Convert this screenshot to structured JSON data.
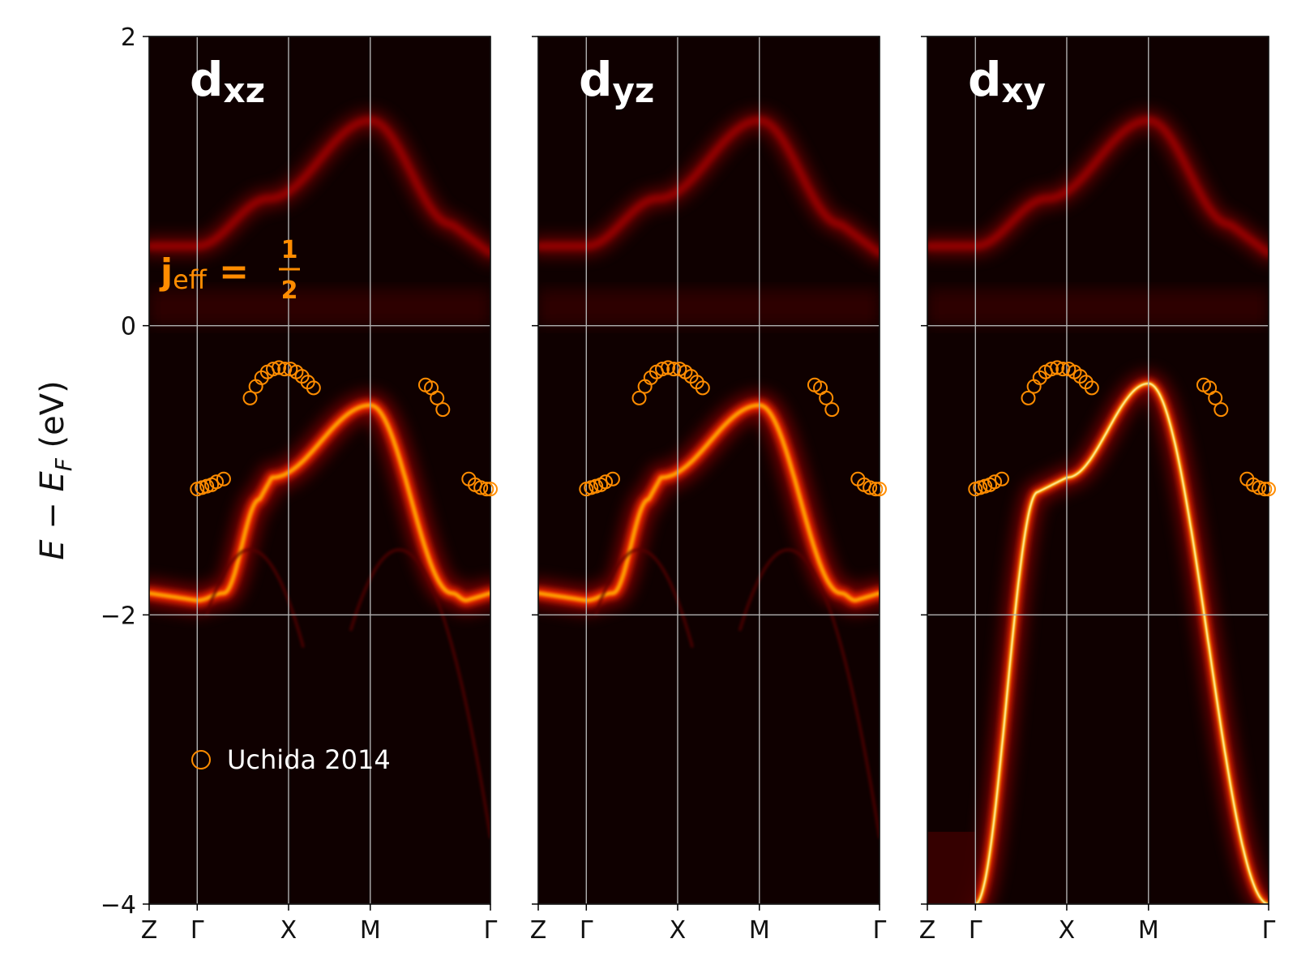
{
  "chart_data": {
    "type": "heatmap",
    "ylabel": {
      "main": "E − E",
      "sub": "F",
      "unit": " (eV)"
    },
    "ylim": [
      -4,
      2
    ],
    "yticks": [
      {
        "value": 2,
        "label": "2"
      },
      {
        "value": 0,
        "label": "0"
      },
      {
        "value": -2,
        "label": "−2"
      },
      {
        "value": -4,
        "label": "−4"
      }
    ],
    "kpath": {
      "range": [
        0,
        7.1
      ],
      "ticks": [
        {
          "pos": 0.0,
          "label": "Z"
        },
        {
          "pos": 1.0,
          "label": "Γ"
        },
        {
          "pos": 2.9,
          "label": "X"
        },
        {
          "pos": 4.6,
          "label": "M"
        },
        {
          "pos": 7.1,
          "label": "Γ"
        }
      ]
    },
    "grid": true,
    "colormap": "hot",
    "panels": [
      {
        "title_main": "d",
        "title_sub": "xz",
        "orbital": "xz"
      },
      {
        "title_main": "d",
        "title_sub": "yz",
        "orbital": "yz"
      },
      {
        "title_main": "d",
        "title_sub": "xy",
        "orbital": "xy"
      }
    ],
    "annotation": {
      "j": "j",
      "sub": "eff",
      "eq": " = ",
      "num": "1",
      "den": "2"
    },
    "series": [
      {
        "name": "Uchida 2014",
        "marker": "open-circle",
        "color": "#ff8c00",
        "points": [
          {
            "x": 1.0,
            "y": -1.13
          },
          {
            "x": 1.1,
            "y": -1.12
          },
          {
            "x": 1.2,
            "y": -1.11
          },
          {
            "x": 1.3,
            "y": -1.1
          },
          {
            "x": 1.4,
            "y": -1.08
          },
          {
            "x": 1.55,
            "y": -1.06
          },
          {
            "x": 2.1,
            "y": -0.5
          },
          {
            "x": 2.22,
            "y": -0.42
          },
          {
            "x": 2.34,
            "y": -0.36
          },
          {
            "x": 2.46,
            "y": -0.32
          },
          {
            "x": 2.58,
            "y": -0.3
          },
          {
            "x": 2.7,
            "y": -0.29
          },
          {
            "x": 2.82,
            "y": -0.3
          },
          {
            "x": 2.94,
            "y": -0.3
          },
          {
            "x": 3.06,
            "y": -0.32
          },
          {
            "x": 3.18,
            "y": -0.35
          },
          {
            "x": 3.3,
            "y": -0.39
          },
          {
            "x": 3.42,
            "y": -0.43
          },
          {
            "x": 5.75,
            "y": -0.41
          },
          {
            "x": 5.87,
            "y": -0.43
          },
          {
            "x": 5.99,
            "y": -0.5
          },
          {
            "x": 6.11,
            "y": -0.58
          },
          {
            "x": 6.65,
            "y": -1.06
          },
          {
            "x": 6.78,
            "y": -1.1
          },
          {
            "x": 6.9,
            "y": -1.12
          },
          {
            "x": 7.02,
            "y": -1.13
          },
          {
            "x": 7.1,
            "y": -1.13
          }
        ]
      }
    ]
  }
}
